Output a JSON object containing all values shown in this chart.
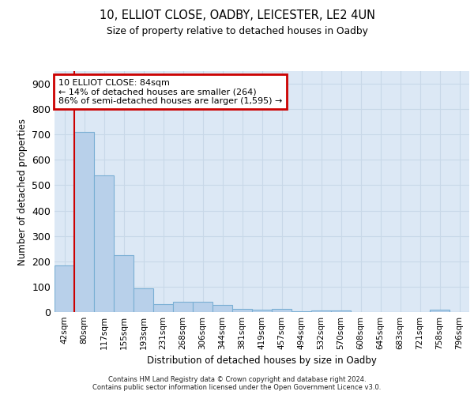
{
  "title_line1": "10, ELLIOT CLOSE, OADBY, LEICESTER, LE2 4UN",
  "title_line2": "Size of property relative to detached houses in Oadby",
  "xlabel": "Distribution of detached houses by size in Oadby",
  "ylabel": "Number of detached properties",
  "bar_color": "#b8d0ea",
  "bar_edge_color": "#7aafd4",
  "grid_color": "#c8d8e8",
  "background_color": "#dce8f5",
  "annotation_line1": "10 ELLIOT CLOSE: 84sqm",
  "annotation_line2": "← 14% of detached houses are smaller (264)",
  "annotation_line3": "86% of semi-detached houses are larger (1,595) →",
  "categories": [
    "42sqm",
    "80sqm",
    "117sqm",
    "155sqm",
    "193sqm",
    "231sqm",
    "268sqm",
    "306sqm",
    "344sqm",
    "381sqm",
    "419sqm",
    "457sqm",
    "494sqm",
    "532sqm",
    "570sqm",
    "608sqm",
    "645sqm",
    "683sqm",
    "721sqm",
    "758sqm",
    "796sqm"
  ],
  "values": [
    185,
    710,
    540,
    225,
    92,
    30,
    40,
    40,
    27,
    13,
    10,
    13,
    3,
    7,
    5,
    0,
    0,
    0,
    0,
    8,
    0
  ],
  "ylim": [
    0,
    950
  ],
  "yticks": [
    0,
    100,
    200,
    300,
    400,
    500,
    600,
    700,
    800,
    900
  ],
  "vline_index": 1.0,
  "footer_line1": "Contains HM Land Registry data © Crown copyright and database right 2024.",
  "footer_line2": "Contains public sector information licensed under the Open Government Licence v3.0."
}
